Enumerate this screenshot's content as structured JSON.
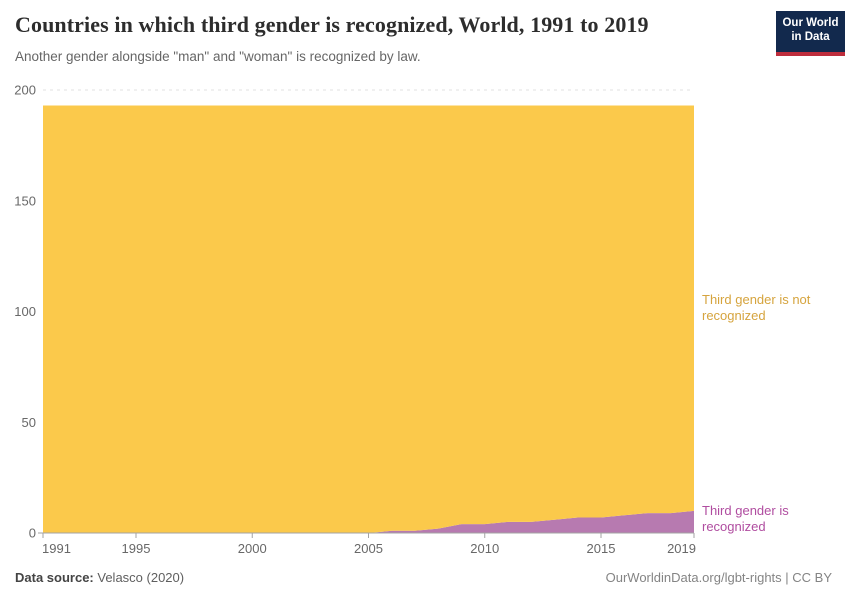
{
  "header": {
    "title": "Countries in which third gender is recognized, World, 1991 to 2019",
    "subtitle": "Another gender alongside \"man\" and \"woman\" is recognized by law.",
    "logo": {
      "line1": "Our World",
      "line2": "in Data",
      "bg_color": "#12294d",
      "bar_color": "#be2d3c"
    }
  },
  "chart_data": {
    "type": "area",
    "stacked": true,
    "title": "Countries in which third gender is recognized, World, 1991 to 2019",
    "xlabel": "",
    "ylabel": "",
    "x": [
      1991,
      1992,
      1993,
      1994,
      1995,
      1996,
      1997,
      1998,
      1999,
      2000,
      2001,
      2002,
      2003,
      2004,
      2005,
      2006,
      2007,
      2008,
      2009,
      2010,
      2011,
      2012,
      2013,
      2014,
      2015,
      2016,
      2017,
      2018,
      2019
    ],
    "series": [
      {
        "name": "Third gender is recognized",
        "color": "#b77ab0",
        "label_color": "#b04da0",
        "values": [
          0,
          0,
          0,
          0,
          0,
          0,
          0,
          0,
          0,
          0,
          0,
          0,
          0,
          0,
          0,
          1,
          1,
          2,
          4,
          4,
          5,
          5,
          6,
          7,
          7,
          8,
          9,
          9,
          10
        ]
      },
      {
        "name": "Third gender is not recognized",
        "color": "#fbc94b",
        "label_color": "#d6a43e",
        "values": [
          193,
          193,
          193,
          193,
          193,
          193,
          193,
          193,
          193,
          193,
          193,
          193,
          193,
          193,
          193,
          192,
          192,
          191,
          189,
          189,
          188,
          188,
          187,
          186,
          186,
          185,
          184,
          184,
          183
        ]
      }
    ],
    "total_countries": 193,
    "xticks": [
      1991,
      1995,
      2000,
      2005,
      2010,
      2015,
      2019
    ],
    "yticks": [
      0,
      50,
      100,
      150,
      200
    ],
    "ylim": [
      0,
      200
    ],
    "grid": "horizontal-dashed",
    "legend_position": "right-edge-annotations"
  },
  "footer": {
    "source_label": "Data source:",
    "source_value": "Velasco (2020)",
    "credit": "OurWorldinData.org/lgbt-rights | CC BY"
  }
}
